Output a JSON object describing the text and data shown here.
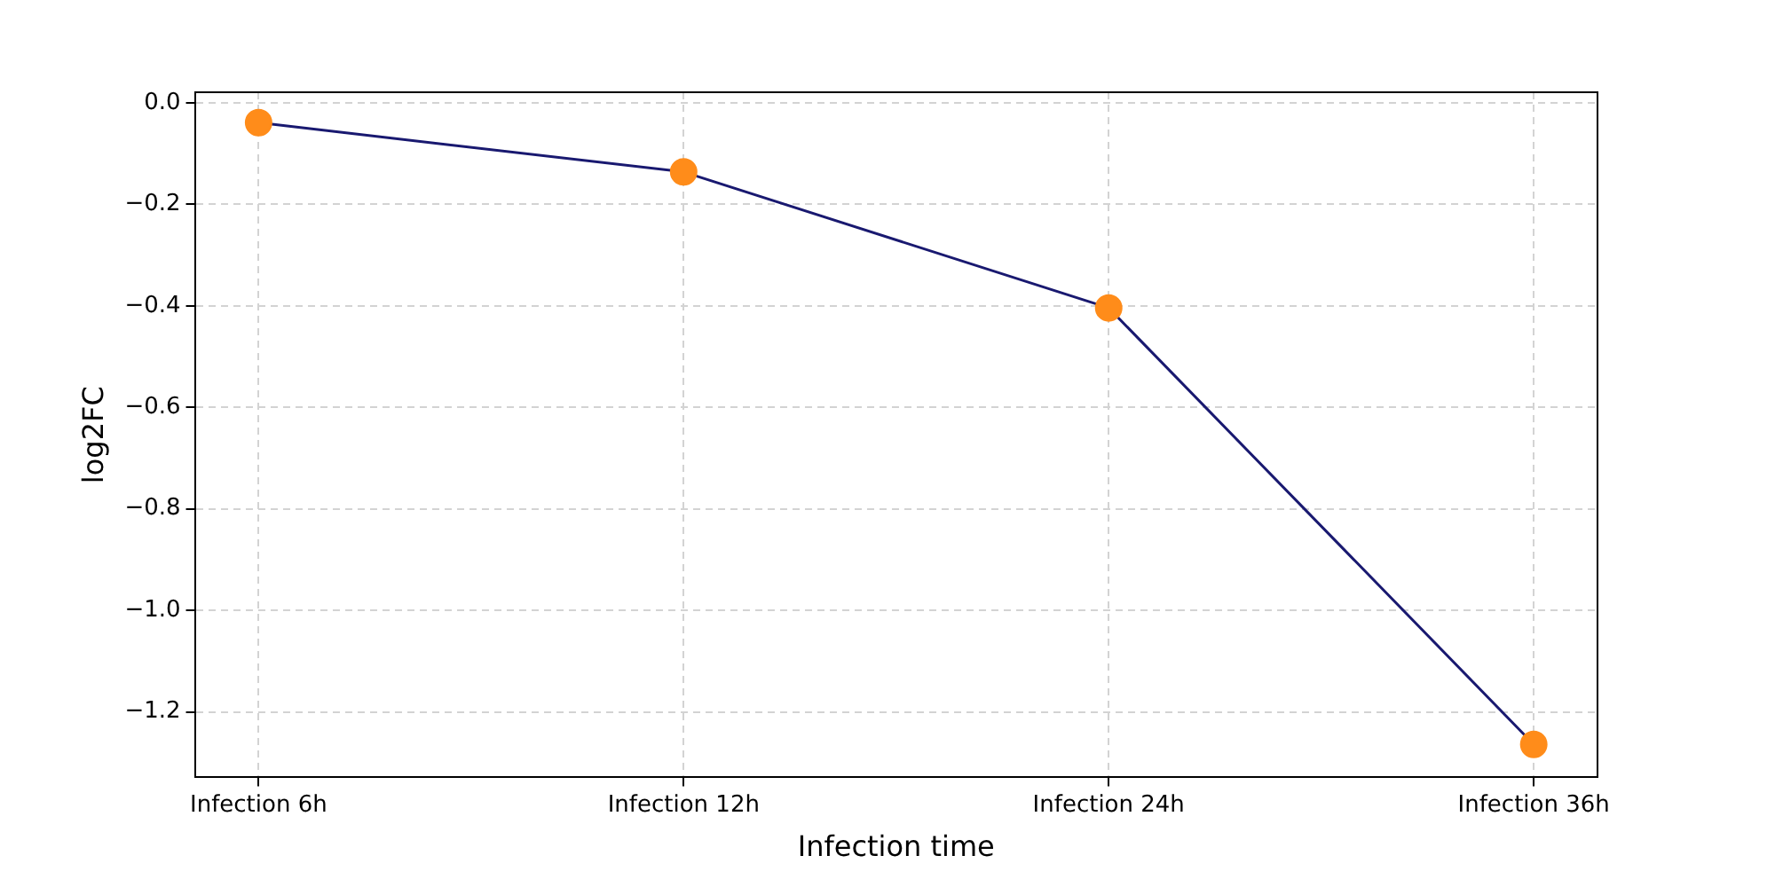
{
  "chart_data": {
    "type": "line",
    "xlabel": "Infection time",
    "ylabel": "log2FC",
    "categories": [
      "Infection 6h",
      "Infection 12h",
      "Infection 24h",
      "Infection 36h"
    ],
    "series": [
      {
        "color": "#191970",
        "colors": [
          "#ff8c1a",
          "#ff8c1a",
          "#ff8c1a",
          "#ff8c1a"
        ],
        "values": [
          -0.039,
          -0.136,
          -0.404,
          -1.264
        ]
      }
    ],
    "ylim": [
      -1.329,
      0.021
    ],
    "yticks": [
      {
        "value": 0,
        "label": "0.0"
      },
      -0.2,
      -0.4,
      -0.6,
      -0.8,
      {
        "value": -1,
        "label": "−1.0"
      },
      -1.2
    ],
    "grid": true,
    "marker": "circle",
    "line_style": "solid",
    "legend": false
  }
}
